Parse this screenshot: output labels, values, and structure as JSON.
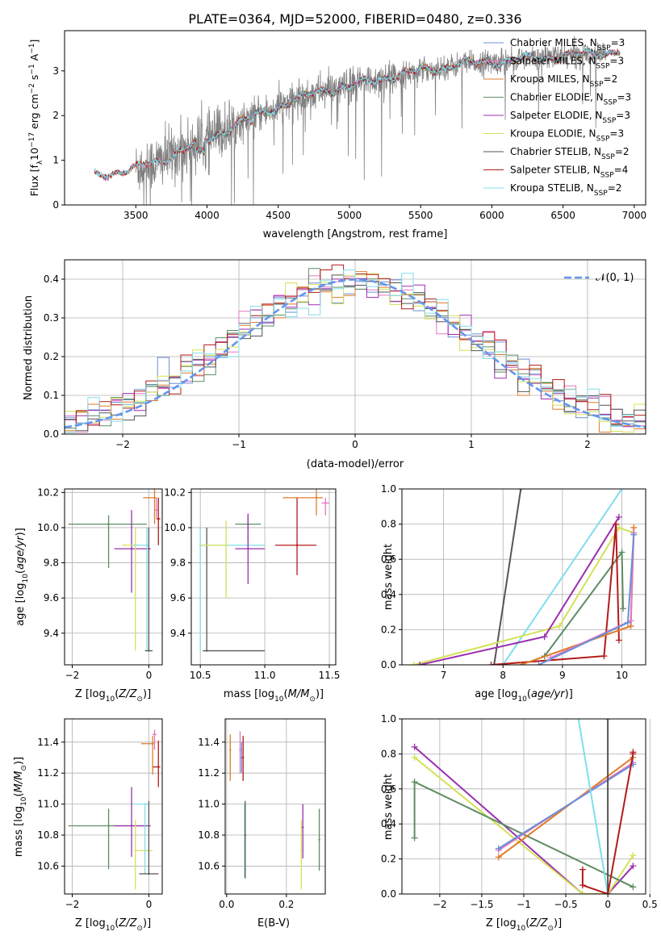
{
  "figure": {
    "title": "PLATE=0364, MJD=52000, FIBERID=0480, z=0.336"
  },
  "palette": {
    "Chabrier MILES": "#6b8fd6",
    "Salpeter MILES": "#e377c2",
    "Kroupa MILES": "#e07b28",
    "Chabrier ELODIE": "#5e8c64",
    "Salpeter ELODIE": "#9b2fae",
    "Kroupa ELODIE": "#d4e157",
    "Chabrier STELIB": "#555555",
    "Salpeter STELIB": "#b31b1b",
    "Kroupa STELIB": "#80deea",
    "normal_curve": "#6495ed",
    "spectrum_data": "#808080"
  },
  "chart_data": [
    {
      "id": "spectrum",
      "type": "line",
      "title": "PLATE=0364, MJD=52000, FIBERID=0480, z=0.336",
      "xlabel": "wavelength [Angstrom, rest frame]",
      "ylabel": "Flux [f_λ 10^-17 erg cm^-2 s^-1 A^-1]",
      "xlim": [
        3000,
        7080
      ],
      "ylim": [
        0,
        3.9
      ],
      "xticks": [
        3500,
        4000,
        4500,
        5000,
        5500,
        6000,
        6500,
        7000
      ],
      "yticks": [
        0,
        1,
        2,
        3
      ],
      "grid": false,
      "legend_position": "top-right",
      "legend": [
        {
          "label": "Chabrier MILES, N",
          "sub": "SSP",
          "tail": "=3",
          "series": "Chabrier MILES"
        },
        {
          "label": "Salpeter MILES, N",
          "sub": "SSP",
          "tail": "=3",
          "series": "Salpeter MILES"
        },
        {
          "label": "Kroupa MILES, N",
          "sub": "SSP",
          "tail": "=2",
          "series": "Kroupa MILES"
        },
        {
          "label": "Chabrier ELODIE, N",
          "sub": "SSP",
          "tail": "=3",
          "series": "Chabrier ELODIE"
        },
        {
          "label": "Salpeter ELODIE, N",
          "sub": "SSP",
          "tail": "=3",
          "series": "Salpeter ELODIE"
        },
        {
          "label": "Kroupa ELODIE, N",
          "sub": "SSP",
          "tail": "=3",
          "series": "Kroupa ELODIE"
        },
        {
          "label": "Chabrier STELIB, N",
          "sub": "SSP",
          "tail": "=2",
          "series": "Chabrier STELIB"
        },
        {
          "label": "Salpeter STELIB, N",
          "sub": "SSP",
          "tail": "=4",
          "series": "Salpeter STELIB"
        },
        {
          "label": "Kroupa STELIB, N",
          "sub": "SSP",
          "tail": "=2",
          "series": "Kroupa STELIB"
        }
      ],
      "continuum_anchor_points": [
        [
          3220,
          0.65
        ],
        [
          3500,
          0.82
        ],
        [
          3650,
          0.95
        ],
        [
          3800,
          1.2
        ],
        [
          4000,
          1.45
        ],
        [
          4200,
          1.8
        ],
        [
          4500,
          2.2
        ],
        [
          4800,
          2.55
        ],
        [
          5000,
          2.65
        ],
        [
          5250,
          2.85
        ],
        [
          5500,
          3.0
        ],
        [
          5800,
          3.15
        ],
        [
          6000,
          3.2
        ],
        [
          6300,
          3.28
        ],
        [
          6600,
          3.35
        ],
        [
          6900,
          3.45
        ]
      ],
      "model_x_range": [
        3210,
        6900
      ],
      "data_x_range": [
        3500,
        6800
      ]
    },
    {
      "id": "residuals",
      "type": "step",
      "xlabel": "(data-model)/error",
      "ylabel": "Normed distribution",
      "xlim": [
        -2.5,
        2.5
      ],
      "ylim": [
        0,
        0.45
      ],
      "xticks": [
        -2,
        -1,
        0,
        1,
        2
      ],
      "yticks": [
        0.0,
        0.1,
        0.2,
        0.3,
        0.4
      ],
      "grid": true,
      "legend_position": "top-right",
      "legend": [
        {
          "label": "N(0, 1)",
          "style": "dashed"
        }
      ],
      "bin_width": 0.1,
      "bin_start": -2.5,
      "n_bins": 50
    },
    {
      "id": "age-vs-Z",
      "type": "errorbar",
      "xlabel": "Z [log10(Z/Z⊙)]",
      "ylabel": "age [log10(age/yr)]",
      "xlim": [
        -2.2,
        0.35
      ],
      "ylim": [
        9.22,
        10.22
      ],
      "xticks": [
        -2,
        0
      ],
      "yticks": [
        9.4,
        9.6,
        9.8,
        10.0,
        10.2
      ],
      "grid": true,
      "points": [
        {
          "series": "Chabrier ELODIE",
          "x": -1.05,
          "y": 10.02,
          "xerr": [
            1.05,
            1.0
          ],
          "yerr": [
            0.25,
            0.05
          ]
        },
        {
          "series": "Salpeter ELODIE",
          "x": -0.45,
          "y": 9.88,
          "xerr": [
            0.45,
            0.5
          ],
          "yerr": [
            0.25,
            0.22
          ]
        },
        {
          "series": "Kroupa ELODIE",
          "x": -0.35,
          "y": 9.9,
          "xerr": [
            0.35,
            0.1
          ],
          "yerr": [
            0.6,
            0.1
          ]
        },
        {
          "series": "Kroupa STELIB",
          "x": -0.05,
          "y": 9.9,
          "xerr": [
            0.35,
            0.05
          ],
          "yerr": [
            0.6,
            0.1
          ]
        },
        {
          "series": "Chabrier STELIB",
          "x": 0.0,
          "y": 9.3,
          "xerr": [
            0.1,
            0.1
          ],
          "yerr": [
            0.0,
            0.7
          ]
        },
        {
          "series": "Salpeter STELIB",
          "x": 0.25,
          "y": 10.05,
          "xerr": [
            0.05,
            0.05
          ],
          "yerr": [
            0.15,
            0.12
          ]
        },
        {
          "series": "Kroupa MILES",
          "x": 0.15,
          "y": 10.17,
          "xerr": [
            0.3,
            0.05
          ],
          "yerr": [
            0.15,
            0.05
          ]
        },
        {
          "series": "Salpeter MILES",
          "x": 0.2,
          "y": 10.1,
          "xerr": [
            0.03,
            0.03
          ],
          "yerr": [
            0.05,
            0.07
          ]
        }
      ]
    },
    {
      "id": "age-vs-mass",
      "type": "errorbar",
      "xlabel": "mass [log10(M/M⊙)]",
      "ylabel": "",
      "xlim": [
        10.43,
        11.55
      ],
      "ylim": [
        9.22,
        10.22
      ],
      "xticks": [
        10.5,
        11.0,
        11.5
      ],
      "yticks": [
        9.4,
        9.6,
        9.8,
        10.0,
        10.2
      ],
      "grid": true,
      "points": [
        {
          "series": "Chabrier STELIB",
          "x": 10.55,
          "y": 9.3,
          "xerr": [
            0.03,
            0.45
          ],
          "yerr": [
            0.0,
            0.7
          ]
        },
        {
          "series": "Kroupa STELIB",
          "x": 10.5,
          "y": 9.9,
          "xerr": [
            0.0,
            0.5
          ],
          "yerr": [
            0.6,
            0.1
          ]
        },
        {
          "series": "Kroupa ELODIE",
          "x": 10.7,
          "y": 9.9,
          "xerr": [
            0.2,
            0.0
          ],
          "yerr": [
            0.3,
            0.14
          ]
        },
        {
          "series": "Chabrier ELODIE",
          "x": 10.87,
          "y": 10.02,
          "xerr": [
            0.1,
            0.1
          ],
          "yerr": [
            0.1,
            0.05
          ]
        },
        {
          "series": "Salpeter ELODIE",
          "x": 10.87,
          "y": 9.88,
          "xerr": [
            0.1,
            0.13
          ],
          "yerr": [
            0.2,
            0.2
          ]
        },
        {
          "series": "Salpeter STELIB",
          "x": 11.25,
          "y": 9.9,
          "xerr": [
            0.17,
            0.15
          ],
          "yerr": [
            0.17,
            0.27
          ]
        },
        {
          "series": "Kroupa MILES",
          "x": 11.4,
          "y": 10.17,
          "xerr": [
            0.26,
            0.05
          ],
          "yerr": [
            0.1,
            0.05
          ]
        },
        {
          "series": "Salpeter MILES",
          "x": 11.47,
          "y": 10.14,
          "xerr": [
            0.03,
            0.03
          ],
          "yerr": [
            0.07,
            0.03
          ]
        }
      ]
    },
    {
      "id": "weight-vs-age",
      "type": "line",
      "xlabel": "age [log10(age/yr)]",
      "ylabel": "mass weight",
      "xlim": [
        6.3,
        10.4
      ],
      "ylim": [
        0,
        1
      ],
      "xticks": [
        7,
        8,
        9,
        10
      ],
      "yticks": [
        0.0,
        0.2,
        0.4,
        0.6,
        0.8,
        1.0
      ],
      "grid": true,
      "series": [
        {
          "series": "Chabrier STELIB",
          "x": [
            7.85,
            8.3
          ],
          "y": [
            0.0,
            1.0
          ]
        },
        {
          "series": "Kroupa STELIB",
          "x": [
            8.0,
            10.0
          ],
          "y": [
            0.0,
            1.0
          ]
        },
        {
          "series": "Kroupa ELODIE",
          "x": [
            6.5,
            8.95,
            9.95,
            10.2
          ],
          "y": [
            0.0,
            0.22,
            0.78,
            0.75
          ]
        },
        {
          "series": "Salpeter ELODIE",
          "x": [
            6.6,
            8.7,
            9.95
          ],
          "y": [
            0.0,
            0.16,
            0.84
          ]
        },
        {
          "series": "Chabrier ELODIE",
          "x": [
            8.7,
            10.0,
            10.02
          ],
          "y": [
            0.05,
            0.64,
            0.32
          ]
        },
        {
          "series": "Salpeter STELIB",
          "x": [
            7.8,
            9.7,
            9.9,
            9.95
          ],
          "y": [
            0.0,
            0.05,
            0.8,
            0.14
          ]
        },
        {
          "series": "Kroupa MILES",
          "x": [
            8.3,
            10.15,
            10.2
          ],
          "y": [
            0.0,
            0.22,
            0.78
          ]
        },
        {
          "series": "Salpeter MILES",
          "x": [
            8.8,
            10.15,
            10.2
          ],
          "y": [
            0.04,
            0.25,
            0.75
          ]
        },
        {
          "series": "Chabrier MILES",
          "x": [
            8.6,
            10.1,
            10.2
          ],
          "y": [
            0.0,
            0.24,
            0.74
          ]
        }
      ]
    },
    {
      "id": "mass-vs-Z",
      "type": "errorbar",
      "xlabel": "Z [log10(Z/Z⊙)]",
      "ylabel": "mass [log10(M/M⊙)]",
      "xlim": [
        -2.2,
        0.35
      ],
      "ylim": [
        10.42,
        11.55
      ],
      "xticks": [
        -2,
        0
      ],
      "yticks": [
        10.6,
        10.8,
        11.0,
        11.2,
        11.4
      ],
      "grid": true,
      "points": [
        {
          "series": "Chabrier ELODIE",
          "x": -1.05,
          "y": 10.86,
          "xerr": [
            1.05,
            1.0
          ],
          "yerr": [
            0.28,
            0.11
          ]
        },
        {
          "series": "Salpeter ELODIE",
          "x": -0.45,
          "y": 10.86,
          "xerr": [
            0.45,
            0.5
          ],
          "yerr": [
            0.2,
            0.25
          ]
        },
        {
          "series": "Kroupa ELODIE",
          "x": -0.35,
          "y": 10.7,
          "xerr": [
            0.0,
            0.45
          ],
          "yerr": [
            0.25,
            0.2
          ]
        },
        {
          "series": "Kroupa STELIB",
          "x": -0.1,
          "y": 11.0,
          "xerr": [
            0.3,
            0.1
          ],
          "yerr": [
            0.45,
            0.0
          ]
        },
        {
          "series": "Chabrier STELIB",
          "x": 0.0,
          "y": 10.55,
          "xerr": [
            0.25,
            0.25
          ],
          "yerr": [
            0.0,
            0.47
          ]
        },
        {
          "series": "Salpeter STELIB",
          "x": 0.25,
          "y": 11.24,
          "xerr": [
            0.15,
            0.05
          ],
          "yerr": [
            0.13,
            0.17
          ]
        },
        {
          "series": "Kroupa MILES",
          "x": 0.1,
          "y": 11.39,
          "xerr": [
            0.3,
            0.05
          ],
          "yerr": [
            0.2,
            0.05
          ]
        },
        {
          "series": "Salpeter MILES",
          "x": 0.15,
          "y": 11.45,
          "xerr": [
            0.05,
            0.05
          ],
          "yerr": [
            0.1,
            0.03
          ]
        }
      ]
    },
    {
      "id": "mass-vs-EBV",
      "type": "errorbar",
      "xlabel": "E(B-V)",
      "ylabel": "",
      "xlim": [
        -0.005,
        0.33
      ],
      "ylim": [
        10.42,
        11.55
      ],
      "xticks": [
        0.0,
        0.2
      ],
      "yticks": [
        10.6,
        10.8,
        11.0,
        11.2,
        11.4
      ],
      "grid": true,
      "points": [
        {
          "series": "Kroupa MILES",
          "x": 0.012,
          "y": 11.35,
          "xerr": [
            0,
            0
          ],
          "yerr": [
            0.2,
            0.1
          ]
        },
        {
          "series": "Salpeter MILES",
          "x": 0.045,
          "y": 11.35,
          "xerr": [
            0,
            0
          ],
          "yerr": [
            0.15,
            0.12
          ]
        },
        {
          "series": "Chabrier MILES",
          "x": 0.05,
          "y": 11.3,
          "xerr": [
            0,
            0
          ],
          "yerr": [
            0.1,
            0.1
          ]
        },
        {
          "series": "Salpeter STELIB",
          "x": 0.055,
          "y": 11.3,
          "xerr": [
            0,
            0
          ],
          "yerr": [
            0.15,
            0.14
          ]
        },
        {
          "series": "Kroupa STELIB",
          "x": 0.06,
          "y": 10.75,
          "xerr": [
            0,
            0
          ],
          "yerr": [
            0.22,
            0.25
          ]
        },
        {
          "series": "Chabrier STELIB",
          "x": 0.062,
          "y": 10.8,
          "xerr": [
            0,
            0
          ],
          "yerr": [
            0.28,
            0.22
          ]
        },
        {
          "series": "Kroupa ELODIE",
          "x": 0.25,
          "y": 10.7,
          "xerr": [
            0,
            0
          ],
          "yerr": [
            0.25,
            0.2
          ]
        },
        {
          "series": "Salpeter ELODIE",
          "x": 0.255,
          "y": 10.85,
          "xerr": [
            0,
            0
          ],
          "yerr": [
            0.2,
            0.15
          ]
        },
        {
          "series": "Chabrier ELODIE",
          "x": 0.31,
          "y": 10.77,
          "xerr": [
            0,
            0
          ],
          "yerr": [
            0.2,
            0.2
          ]
        }
      ]
    },
    {
      "id": "weight-vs-Z",
      "type": "line",
      "xlabel": "Z [log10(Z/Z⊙)]",
      "ylabel": "mass weight",
      "xlim": [
        -2.45,
        0.45
      ],
      "ylim": [
        0,
        1
      ],
      "xticks": [
        -2.0,
        -1.5,
        -1.0,
        -0.5,
        0.0,
        0.5
      ],
      "yticks": [
        0.0,
        0.2,
        0.4,
        0.6,
        0.8,
        1.0
      ],
      "grid": true,
      "series": [
        {
          "series": "Salpeter ELODIE",
          "x": [
            -2.3,
            -0.3,
            0.0,
            0.3
          ],
          "y": [
            0.84,
            0.0,
            0.0,
            0.16
          ]
        },
        {
          "series": "Kroupa ELODIE",
          "x": [
            -2.3,
            -0.3,
            0.0,
            0.3
          ],
          "y": [
            0.78,
            0.0,
            0.0,
            0.22
          ]
        },
        {
          "series": "Chabrier ELODIE",
          "x": [
            -2.3,
            -2.3,
            0.3
          ],
          "y": [
            0.32,
            0.64,
            0.04
          ]
        },
        {
          "series": "Kroupa MILES",
          "x": [
            -1.3,
            0.3
          ],
          "y": [
            0.21,
            0.78
          ]
        },
        {
          "series": "Salpeter MILES",
          "x": [
            -1.3,
            0.3
          ],
          "y": [
            0.25,
            0.75
          ]
        },
        {
          "series": "Chabrier MILES",
          "x": [
            -1.3,
            0.3
          ],
          "y": [
            0.26,
            0.74
          ]
        },
        {
          "series": "Kroupa STELIB",
          "x": [
            -0.35,
            0.0
          ],
          "y": [
            1.0,
            0.0
          ]
        },
        {
          "series": "Chabrier STELIB",
          "x": [
            0.0,
            0.0
          ],
          "y": [
            0.0,
            1.0
          ]
        },
        {
          "series": "Salpeter STELIB",
          "x": [
            -0.3,
            -0.3,
            0.0,
            0.3,
            0.3
          ],
          "y": [
            0.14,
            0.05,
            0.0,
            0.8,
            0.81
          ]
        }
      ]
    }
  ]
}
